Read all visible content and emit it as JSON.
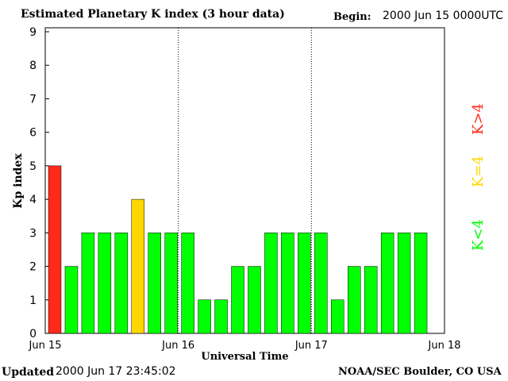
{
  "header": {
    "title": "Estimated Planetary K index (3 hour data)",
    "begin_label": "Begin:",
    "begin_value": "2000 Jun 15 0000UTC"
  },
  "footer": {
    "updated_label": "Updated",
    "updated_value": "2000 Jun 17 23:45:02",
    "credit": "NOAA/SEC Boulder, CO USA"
  },
  "colors": {
    "quiet": "#00ff00",
    "moderate": "#ffd700",
    "storm": "#ff2a1a"
  },
  "chart_data": {
    "type": "bar",
    "title": "Estimated Planetary K index (3 hour data)",
    "xlabel": "Universal Time",
    "ylabel": "Kp index",
    "ylim": [
      0,
      9
    ],
    "yticks": [
      "0",
      "1",
      "2",
      "3",
      "4",
      "5",
      "6",
      "7",
      "8",
      "9"
    ],
    "xticks": [
      "Jun 15",
      "Jun 16",
      "Jun 17",
      "Jun 18"
    ],
    "interval_hours": 3,
    "values": [
      5,
      2,
      3,
      3,
      3,
      4,
      3,
      3,
      3,
      1,
      1,
      2,
      2,
      3,
      3,
      3,
      3,
      1,
      2,
      2,
      3,
      3,
      3
    ],
    "legend": [
      {
        "label": "K<4",
        "color": "#00ff00"
      },
      {
        "label": "K=4",
        "color": "#ffd700"
      },
      {
        "label": "K>4",
        "color": "#ff2a1a"
      }
    ],
    "legend_placement": "right",
    "grid": false
  }
}
